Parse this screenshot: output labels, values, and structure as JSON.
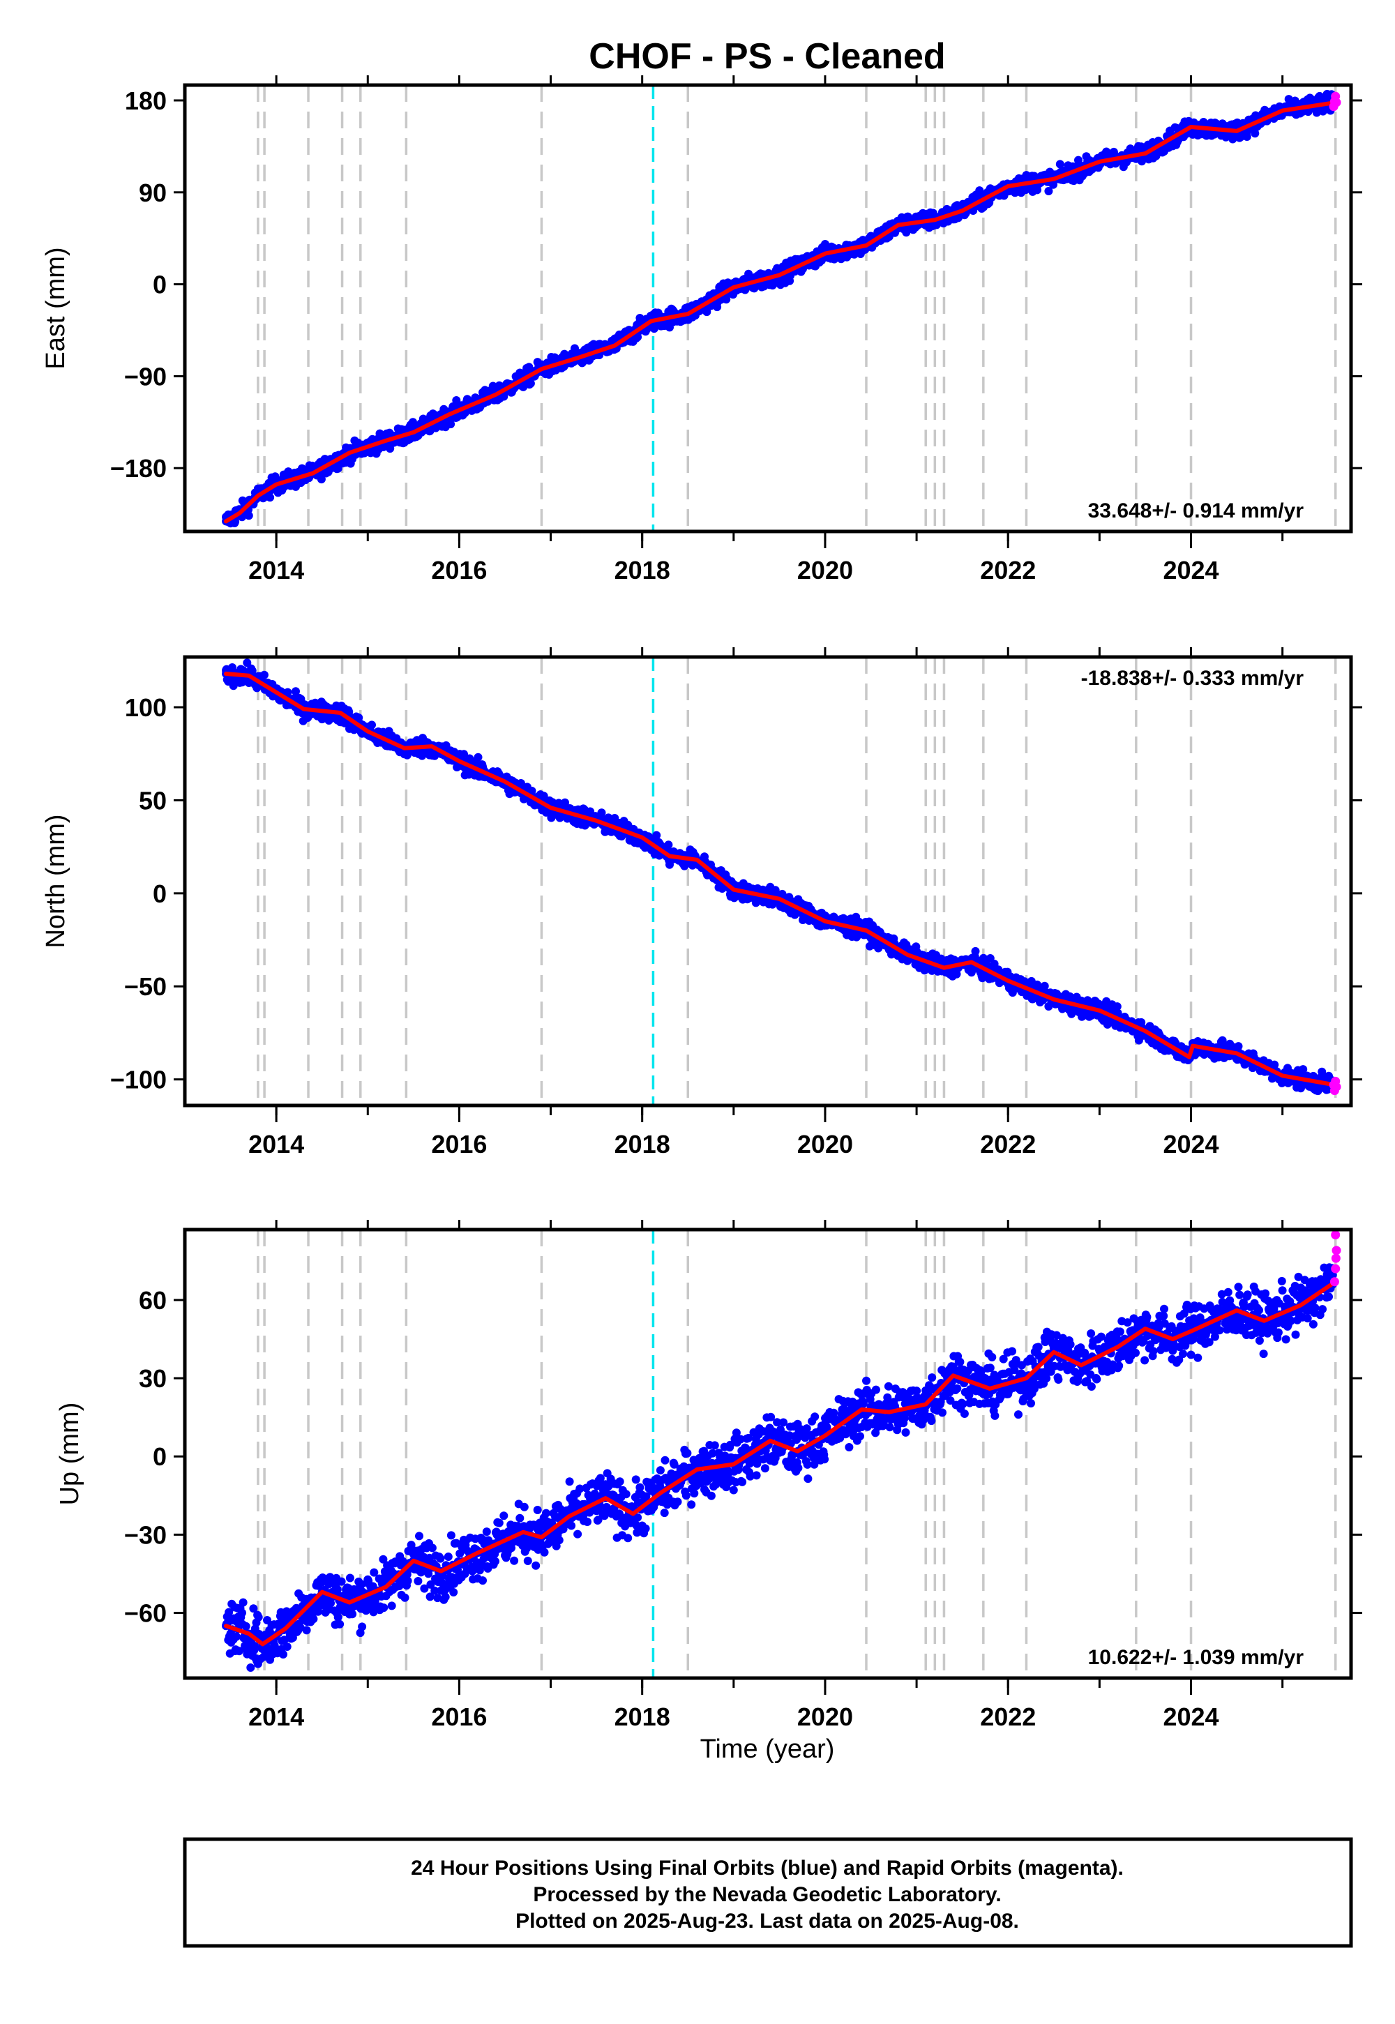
{
  "colors": {
    "final_orbits": "#0000ff",
    "rapid_orbits": "#ff00ff",
    "fit": "#ff0000",
    "equipment_change": "#c8c8c8",
    "earthquake": "#00e5ee"
  },
  "figure": {
    "title": "CHOF  - PS - Cleaned",
    "xlabel": "Time (year)",
    "footer": [
      "24 Hour Positions Using Final Orbits (blue) and Rapid Orbits (magenta).",
      "Processed by the Nevada Geodetic Laboratory.",
      "Plotted on 2025-Aug-23. Last data on 2025-Aug-08."
    ]
  },
  "chart_data": [
    {
      "type": "scatter",
      "ylabel": "East (mm)",
      "rate": "33.648+/- 0.914 mm/yr",
      "rate_position": "bottom-right",
      "xlim": [
        2013.0,
        2025.75
      ],
      "ylim": [
        -242,
        195
      ],
      "xticks": [
        2014,
        2016,
        2018,
        2020,
        2022,
        2024
      ],
      "yticks": [
        180,
        90,
        0,
        -90,
        -180
      ],
      "ytick_labels": [
        "180",
        "90",
        "0",
        "−90",
        "−180"
      ],
      "vertical_lines_gray": [
        2013.8,
        2013.87,
        2014.35,
        2014.72,
        2014.92,
        2015.42,
        2016.9,
        2018.5,
        2020.45,
        2021.1,
        2021.2,
        2021.3,
        2021.73,
        2022.2,
        2023.4,
        2024.0,
        2025.58
      ],
      "vertical_lines_cyan": [
        2018.12
      ],
      "series": [
        {
          "name": "Final Orbits",
          "color": "#0000ff",
          "x": [
            2013.45,
            2013.6,
            2013.8,
            2014.0,
            2014.4,
            2014.8,
            2015.2,
            2015.5,
            2015.9,
            2016.4,
            2016.9,
            2017.3,
            2017.7,
            2018.1,
            2018.5,
            2019.0,
            2019.5,
            2020.0,
            2020.45,
            2020.8,
            2021.2,
            2021.5,
            2022.0,
            2022.5,
            2023.0,
            2023.5,
            2024.0,
            2024.5,
            2025.0,
            2025.55
          ],
          "y": [
            -232,
            -224,
            -207,
            -196,
            -185,
            -165,
            -153,
            -145,
            -127,
            -108,
            -83,
            -72,
            -60,
            -36,
            -29,
            -3,
            9,
            30,
            38,
            58,
            63,
            72,
            96,
            103,
            120,
            128,
            154,
            150,
            170,
            178
          ]
        },
        {
          "name": "Rapid Orbits",
          "color": "#ff00ff",
          "x": [
            2025.56,
            2025.57,
            2025.58,
            2025.59
          ],
          "y": [
            174,
            179,
            184,
            178
          ]
        }
      ],
      "fit": {
        "color": "#ff0000",
        "x": [
          2013.45,
          2013.6,
          2013.8,
          2014.0,
          2014.4,
          2014.8,
          2015.2,
          2015.5,
          2015.9,
          2016.4,
          2016.9,
          2017.3,
          2017.7,
          2018.1,
          2018.5,
          2019.0,
          2019.5,
          2020.0,
          2020.45,
          2020.8,
          2021.2,
          2021.5,
          2022.0,
          2022.5,
          2023.0,
          2023.5,
          2024.0,
          2024.5,
          2025.0,
          2025.58
        ],
        "y": [
          -232,
          -224,
          -207,
          -196,
          -185,
          -165,
          -153,
          -145,
          -127,
          -108,
          -83,
          -72,
          -60,
          -36,
          -29,
          -3,
          9,
          30,
          38,
          58,
          63,
          72,
          96,
          103,
          120,
          128,
          154,
          150,
          170,
          178
        ]
      }
    },
    {
      "type": "scatter",
      "ylabel": "North (mm)",
      "rate": "-18.838+/- 0.333 mm/yr",
      "rate_position": "top-right",
      "xlim": [
        2013.0,
        2025.75
      ],
      "ylim": [
        -114,
        127
      ],
      "xticks": [
        2014,
        2016,
        2018,
        2020,
        2022,
        2024
      ],
      "yticks": [
        100,
        50,
        0,
        -50,
        -100
      ],
      "ytick_labels": [
        "100",
        "50",
        "0",
        "−50",
        "−100"
      ],
      "vertical_lines_gray": [
        2013.8,
        2013.87,
        2014.35,
        2014.72,
        2014.92,
        2015.42,
        2016.9,
        2018.5,
        2020.45,
        2021.1,
        2021.2,
        2021.3,
        2021.73,
        2022.2,
        2023.4,
        2024.0,
        2025.58
      ],
      "vertical_lines_cyan": [
        2018.12
      ],
      "series": [
        {
          "name": "Final Orbits",
          "color": "#0000ff",
          "x": [
            2013.45,
            2013.7,
            2014.0,
            2014.3,
            2014.7,
            2015.0,
            2015.4,
            2015.7,
            2016.0,
            2016.5,
            2017.0,
            2017.5,
            2018.0,
            2018.3,
            2018.6,
            2019.0,
            2019.5,
            2020.0,
            2020.45,
            2020.9,
            2021.3,
            2021.6,
            2022.0,
            2022.5,
            2023.0,
            2023.5,
            2023.98,
            2024.02,
            2024.5,
            2025.0,
            2025.55
          ],
          "y": [
            118,
            117,
            108,
            99,
            97,
            87,
            78,
            79,
            71,
            60,
            46,
            39,
            30,
            20,
            18,
            2,
            -3,
            -15,
            -20,
            -33,
            -40,
            -37,
            -47,
            -57,
            -63,
            -74,
            -88,
            -82,
            -86,
            -98,
            -103
          ]
        },
        {
          "name": "Rapid Orbits",
          "color": "#ff00ff",
          "x": [
            2025.56,
            2025.57,
            2025.58,
            2025.59
          ],
          "y": [
            -103,
            -106,
            -101,
            -104
          ]
        }
      ],
      "fit": {
        "color": "#ff0000",
        "x": [
          2013.45,
          2013.7,
          2014.0,
          2014.3,
          2014.7,
          2015.0,
          2015.4,
          2015.7,
          2016.0,
          2016.5,
          2017.0,
          2017.5,
          2018.0,
          2018.3,
          2018.6,
          2019.0,
          2019.5,
          2020.0,
          2020.45,
          2020.9,
          2021.3,
          2021.6,
          2022.0,
          2022.5,
          2023.0,
          2023.5,
          2023.98,
          2024.02,
          2024.5,
          2025.0,
          2025.58
        ],
        "y": [
          118,
          117,
          108,
          99,
          97,
          87,
          78,
          79,
          71,
          60,
          46,
          39,
          30,
          20,
          18,
          2,
          -3,
          -15,
          -20,
          -33,
          -40,
          -37,
          -47,
          -57,
          -63,
          -74,
          -88,
          -82,
          -86,
          -98,
          -103
        ]
      }
    },
    {
      "type": "scatter",
      "ylabel": "Up (mm)",
      "rate": "10.622+/- 1.039 mm/yr",
      "rate_position": "bottom-right",
      "xlim": [
        2013.0,
        2025.75
      ],
      "ylim": [
        -85,
        87
      ],
      "xticks": [
        2014,
        2016,
        2018,
        2020,
        2022,
        2024
      ],
      "yticks": [
        60,
        30,
        0,
        -30,
        -60
      ],
      "ytick_labels": [
        "60",
        "30",
        "0",
        "−30",
        "−60"
      ],
      "vertical_lines_gray": [
        2013.8,
        2013.87,
        2014.35,
        2014.72,
        2014.92,
        2015.42,
        2016.9,
        2018.5,
        2020.45,
        2021.1,
        2021.2,
        2021.3,
        2021.73,
        2022.2,
        2023.4,
        2024.0,
        2025.58
      ],
      "vertical_lines_cyan": [
        2018.12
      ],
      "series": [
        {
          "name": "Final Orbits",
          "color": "#0000ff",
          "x": [
            2013.45,
            2013.7,
            2013.85,
            2014.1,
            2014.5,
            2014.8,
            2015.2,
            2015.5,
            2015.8,
            2016.2,
            2016.7,
            2016.9,
            2017.2,
            2017.6,
            2017.9,
            2018.2,
            2018.6,
            2019.0,
            2019.4,
            2019.7,
            2020.0,
            2020.4,
            2020.7,
            2021.1,
            2021.4,
            2021.8,
            2022.2,
            2022.5,
            2022.8,
            2023.2,
            2023.5,
            2023.8,
            2024.0,
            2024.5,
            2024.8,
            2025.2,
            2025.55
          ],
          "y": [
            -65,
            -68,
            -72,
            -66,
            -52,
            -56,
            -50,
            -40,
            -44,
            -37,
            -29,
            -31,
            -23,
            -16,
            -22,
            -14,
            -5,
            -3,
            6,
            2,
            8,
            18,
            17,
            20,
            31,
            26,
            30,
            40,
            35,
            42,
            49,
            45,
            48,
            56,
            52,
            58,
            66
          ]
        },
        {
          "name": "Rapid Orbits",
          "color": "#ff00ff",
          "x": [
            2025.57,
            2025.58,
            2025.585,
            2025.59,
            2025.58
          ],
          "y": [
            67,
            72,
            76,
            79,
            85
          ]
        }
      ],
      "fit": {
        "color": "#ff0000",
        "x": [
          2013.45,
          2013.7,
          2013.85,
          2014.1,
          2014.5,
          2014.8,
          2015.2,
          2015.5,
          2015.8,
          2016.2,
          2016.7,
          2016.9,
          2017.2,
          2017.6,
          2017.9,
          2018.2,
          2018.6,
          2019.0,
          2019.4,
          2019.7,
          2020.0,
          2020.4,
          2020.7,
          2021.1,
          2021.4,
          2021.8,
          2022.2,
          2022.5,
          2022.8,
          2023.2,
          2023.5,
          2023.8,
          2024.0,
          2024.5,
          2024.8,
          2025.2,
          2025.58
        ],
        "y": [
          -65,
          -68,
          -72,
          -66,
          -52,
          -56,
          -50,
          -40,
          -44,
          -37,
          -29,
          -31,
          -23,
          -16,
          -22,
          -14,
          -5,
          -3,
          6,
          2,
          8,
          18,
          17,
          20,
          31,
          26,
          30,
          40,
          35,
          42,
          49,
          45,
          48,
          56,
          52,
          58,
          67
        ]
      }
    }
  ]
}
